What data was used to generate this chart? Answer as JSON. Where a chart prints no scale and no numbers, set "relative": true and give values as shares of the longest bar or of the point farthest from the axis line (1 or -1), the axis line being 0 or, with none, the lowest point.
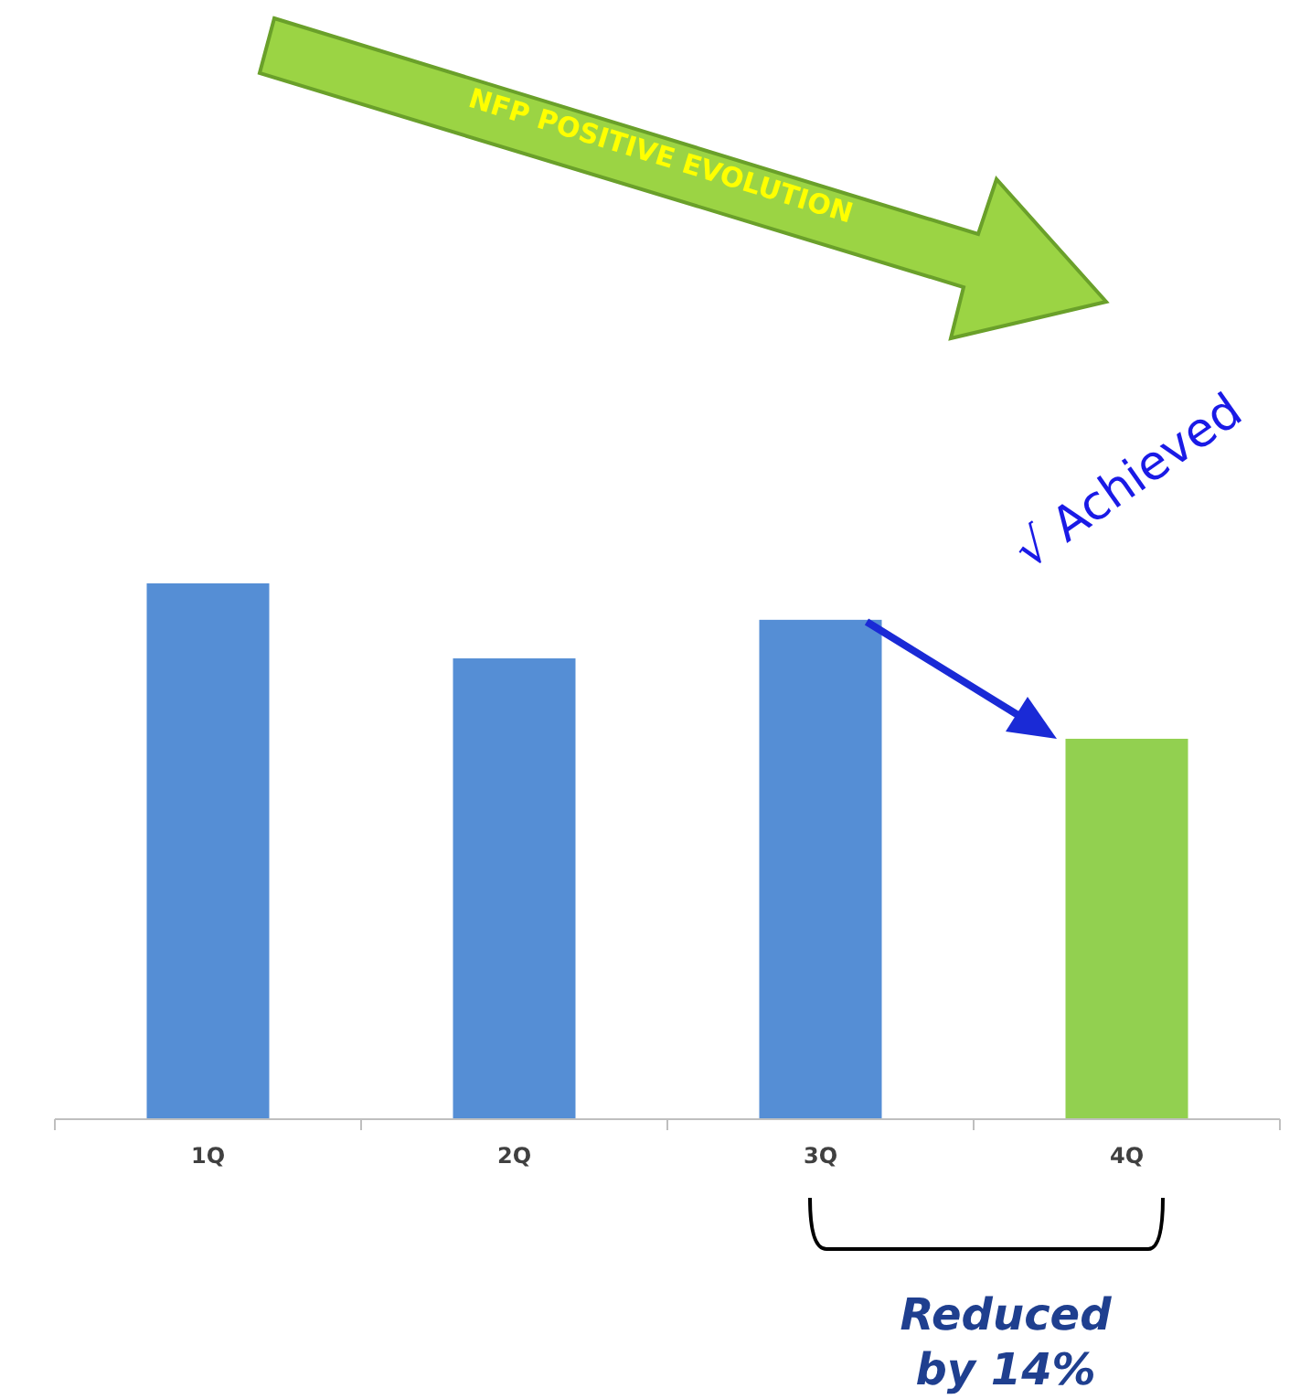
{
  "chart_data": {
    "type": "bar",
    "relative": true,
    "categories": [
      "1Q",
      "2Q",
      "3Q",
      "4Q"
    ],
    "values": [
      1,
      0.86,
      0.932,
      0.71
    ],
    "colors": [
      "#558ed5",
      "#558ed5",
      "#558ed5",
      "#92d050"
    ],
    "annotations": [
      "NFP POSITIVE EVOLUTION",
      "√  Achieved",
      "Reduced by 14%"
    ]
  }
}
